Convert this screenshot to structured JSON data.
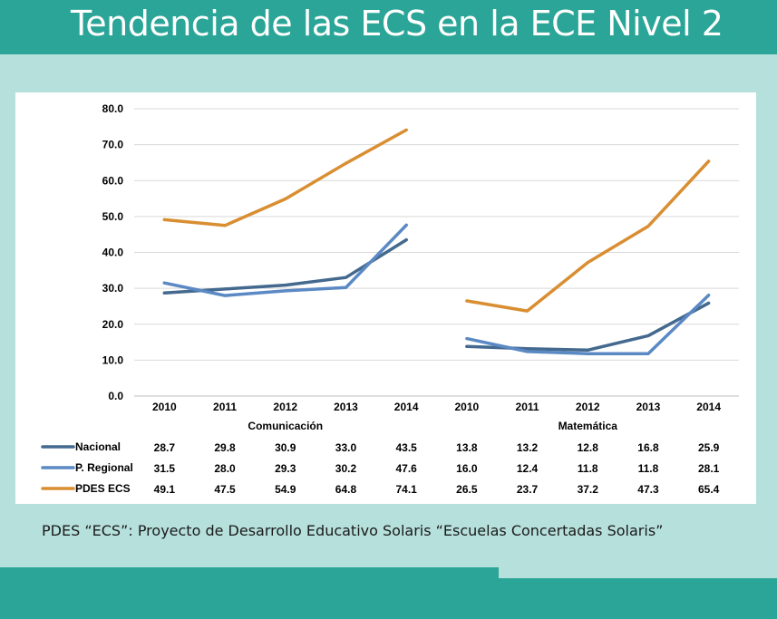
{
  "slide": {
    "title": "Tendencia de las ECS en la ECE Nivel 2",
    "footnote": "PDES “ECS”: Proyecto de Desarrollo Educativo Solaris “Escuelas Concertadas Solaris”"
  },
  "colors": {
    "background": "#b6e0dc",
    "title_bar": "#2aa597",
    "footer_bar": "#2aa597"
  },
  "chart_data": {
    "type": "line",
    "title": "",
    "xlabel": "",
    "ylabel": "",
    "ylim": [
      0,
      80
    ],
    "y_ticks": [
      "0.0",
      "10.0",
      "20.0",
      "30.0",
      "40.0",
      "50.0",
      "60.0",
      "70.0",
      "80.0"
    ],
    "grid": true,
    "legend": "data-table",
    "groups": [
      {
        "name": "Comunicación",
        "categories": [
          "2010",
          "2011",
          "2012",
          "2013",
          "2014"
        ]
      },
      {
        "name": "Matemática",
        "categories": [
          "2010",
          "2011",
          "2012",
          "2013",
          "2014"
        ]
      }
    ],
    "series": [
      {
        "name": "Nacional",
        "color": "#44698f",
        "groups": [
          [
            28.7,
            29.8,
            30.9,
            33.0,
            43.5
          ],
          [
            13.8,
            13.2,
            12.8,
            16.8,
            25.9
          ]
        ],
        "labels": [
          [
            "28.7",
            "29.8",
            "30.9",
            "33.0",
            "43.5"
          ],
          [
            "13.8",
            "13.2",
            "12.8",
            "16.8",
            "25.9"
          ]
        ]
      },
      {
        "name": "P. Regional",
        "color": "#5b89c4",
        "groups": [
          [
            31.5,
            28.0,
            29.3,
            30.2,
            47.6
          ],
          [
            16.0,
            12.4,
            11.8,
            11.8,
            28.1
          ]
        ],
        "labels": [
          [
            "31.5",
            "28.0",
            "29.3",
            "30.2",
            "47.6"
          ],
          [
            "16.0",
            "12.4",
            "11.8",
            "11.8",
            "28.1"
          ]
        ]
      },
      {
        "name": "PDES ECS",
        "color": "#d98e32",
        "groups": [
          [
            49.1,
            47.5,
            54.9,
            64.8,
            74.1
          ],
          [
            26.5,
            23.7,
            37.2,
            47.3,
            65.4
          ]
        ],
        "labels": [
          [
            "49.1",
            "47.5",
            "54.9",
            "64.8",
            "74.1"
          ],
          [
            "26.5",
            "23.7",
            "37.2",
            "47.3",
            "65.4"
          ]
        ]
      }
    ]
  }
}
